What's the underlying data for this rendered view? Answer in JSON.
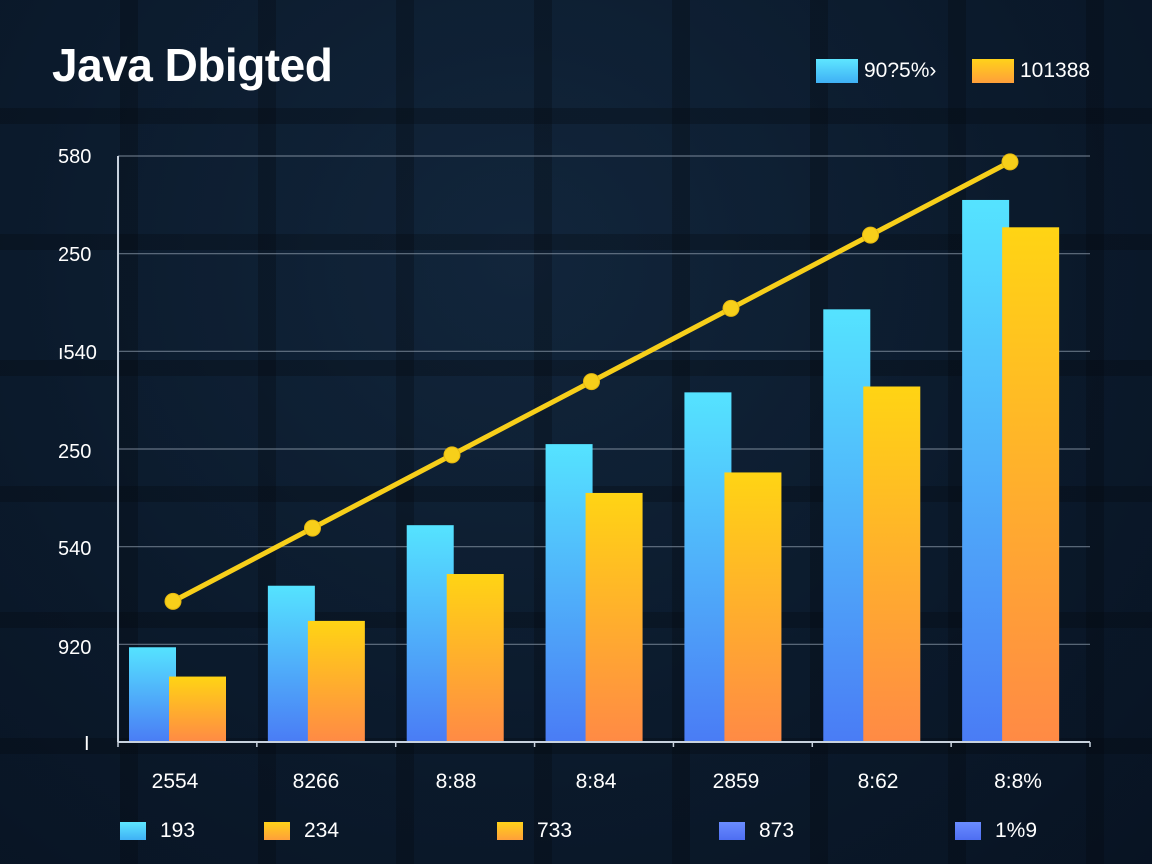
{
  "chart_data": {
    "type": "bar",
    "title": "Java Dbigted",
    "legend": [
      {
        "label": "90?5%›",
        "color": "#4fd8ff"
      },
      {
        "label": "101388",
        "color": "#ffc21a"
      }
    ],
    "y_tick_labels": [
      "580",
      "250",
      "ı540",
      "250",
      "540",
      "920",
      "I"
    ],
    "categories": [
      "2554",
      "8266",
      "8:88",
      "8:84",
      "2859",
      "8:62",
      "8:8%"
    ],
    "ylim": [
      0,
      600
    ],
    "grid": true,
    "series": [
      {
        "name": "series-cyan",
        "color_top": "#55e3ff",
        "color_bottom": "#4a7cf5",
        "values": [
          97,
          160,
          222,
          305,
          358,
          443,
          555
        ]
      },
      {
        "name": "series-gold",
        "color_top": "#ffd414",
        "color_bottom": "#ff8a45",
        "values": [
          67,
          124,
          172,
          255,
          276,
          364,
          527
        ]
      },
      {
        "name": "trend-line",
        "type": "line",
        "color": "#f7cf1a",
        "values": [
          144,
          219,
          294,
          369,
          444,
          519,
          594
        ]
      }
    ],
    "bottom_legend": [
      {
        "label": "193",
        "color": "#4fd8ff"
      },
      {
        "label": "234",
        "color": "#ffb02a"
      },
      {
        "label": "733",
        "color": "#ffb02a"
      },
      {
        "label": "873",
        "color": "#5b7cf7"
      },
      {
        "label": "1%9",
        "color": "#5b7cf7"
      }
    ]
  }
}
